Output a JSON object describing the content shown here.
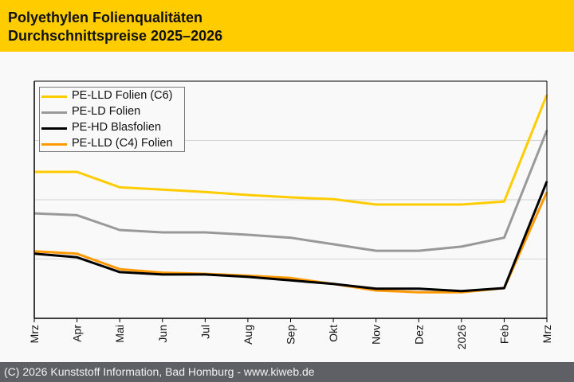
{
  "header": {
    "title_line1": "Polyethylen Folienqualitäten",
    "title_line2": "Durchschnittspreise 2025–2026",
    "background": "#ffcc00"
  },
  "footer": {
    "text": "(C) 2026 Kunststoff Information, Bad Homburg - www.kiweb.de",
    "background": "#5f6066"
  },
  "chart_data": {
    "type": "line",
    "title": "Polyethylen Folienqualitäten – Durchschnittspreise 2025–2026",
    "xlabel": "",
    "ylabel": "",
    "y_axis_labels_visible": false,
    "y_units_note": "relative price index in gridline units (no y-axis labels shown)",
    "ylim": [
      0,
      4
    ],
    "y_gridlines": [
      1,
      2,
      3
    ],
    "grid": true,
    "legend_position": "top-left",
    "x": [
      "Mrz",
      "Apr",
      "Mai",
      "Jun",
      "Jul",
      "Aug",
      "Sep",
      "Okt",
      "Nov",
      "Dez",
      "2026",
      "Feb",
      "Mrz"
    ],
    "series": [
      {
        "name": "PE-LLD Folien (C6)",
        "color": "#ffcc00",
        "values": [
          2.47,
          2.47,
          2.21,
          2.17,
          2.13,
          2.08,
          2.04,
          2.01,
          1.92,
          1.92,
          1.92,
          1.97,
          3.77
        ]
      },
      {
        "name": "PE-LD Folien",
        "color": "#999999",
        "values": [
          1.77,
          1.74,
          1.49,
          1.45,
          1.45,
          1.41,
          1.36,
          1.25,
          1.14,
          1.14,
          1.21,
          1.36,
          3.17
        ]
      },
      {
        "name": "PE-HD Blasfolien",
        "color": "#000000",
        "values": [
          1.09,
          1.03,
          0.78,
          0.74,
          0.74,
          0.7,
          0.64,
          0.58,
          0.5,
          0.5,
          0.46,
          0.51,
          2.31
        ]
      },
      {
        "name": "PE-LLD (C4) Folien",
        "color": "#ff9900",
        "values": [
          1.13,
          1.09,
          0.83,
          0.77,
          0.75,
          0.72,
          0.68,
          0.58,
          0.47,
          0.44,
          0.44,
          0.51,
          2.13
        ]
      }
    ]
  }
}
